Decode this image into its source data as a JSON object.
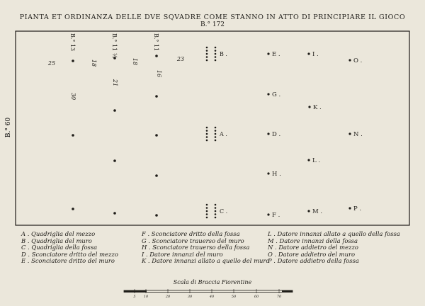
{
  "title": "PIANTA ET ORDINANZA DELLE DVE SQVADRE COME STANNO IN ATTO DI PRINCIPIARE IL GIOCO",
  "field_length": "B.° 172",
  "field_width": "B.° 60",
  "column_labels": [
    "B.° 13",
    "B.° 11 ½",
    "B.° 11"
  ],
  "distance_labels": [
    "25",
    "18",
    "18",
    "23",
    "30",
    "21",
    "16"
  ],
  "point_labels": [
    "A",
    "B",
    "C",
    "D",
    "E",
    "F",
    "G",
    "H",
    "I",
    "K",
    "L",
    "M",
    "N",
    "O",
    "P"
  ],
  "legend": [
    [
      "A . Quadriglia del mezzo",
      "B . Quadriglia del muro",
      "C . Quadriglia della fossa",
      "D . Sconciatore dritto del mezzo",
      "E . Sconciatore dritto del muro"
    ],
    [
      "F . Sconciatore dritto della fossa",
      "G . Sconciatore trauerso del muro",
      "H . Sconciatore trauerso della fossa",
      "I . Datore innanzi del muro",
      "K . Datore innanzi allato a quello del muro"
    ],
    [
      "L . Datore innanzi allato a quello della fossa",
      "M . Datore innanzi della fossa",
      "N . Datore addietro del mezzo",
      "O . Datore addietro del muro",
      "P . Datore addietro della fossa"
    ]
  ],
  "scale": {
    "title": "Scala di Braccia Fiorentine",
    "ticks": [
      "5",
      "10",
      "20",
      "30",
      "40",
      "50",
      "60",
      "70"
    ]
  },
  "colors": {
    "paper": "#ebe7db",
    "ink": "#1e1c18"
  }
}
